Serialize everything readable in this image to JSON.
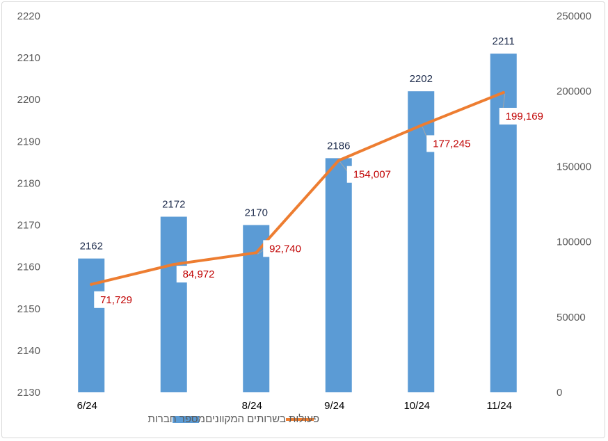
{
  "chart_data": {
    "type": "bar",
    "categories": [
      "6/24",
      "",
      "8/24",
      "9/24",
      "10/24",
      "11/24"
    ],
    "series": [
      {
        "name": "מספר חברות",
        "type": "bar",
        "axis": "left",
        "values": [
          2162,
          2172,
          2170,
          2186,
          2202,
          2211
        ],
        "labels": [
          "2162",
          "2172",
          "2170",
          "2186",
          "2202",
          "2211"
        ],
        "color": "#5b9bd5"
      },
      {
        "name": "פעולות בשרותים המקוונים",
        "type": "line",
        "axis": "right",
        "values": [
          71729,
          84972,
          92740,
          154007,
          177245,
          199169
        ],
        "labels": [
          "71,729",
          "84,972",
          "92,740",
          "154,007",
          "177,245",
          "199,169"
        ],
        "color": "#ed7d31"
      }
    ],
    "y_left": {
      "ylim": [
        2130,
        2220
      ],
      "ticks": [
        "2130",
        "2140",
        "2150",
        "2160",
        "2170",
        "2180",
        "2190",
        "2200",
        "2210",
        "2220"
      ]
    },
    "y_right": {
      "ylim": [
        0,
        250000
      ],
      "ticks": [
        "0",
        "50000",
        "100000",
        "150000",
        "200000",
        "250000"
      ]
    },
    "grid": false,
    "legend": "bottom",
    "label_color": "#c00000",
    "bar_label_color": "#1f2d4d"
  }
}
